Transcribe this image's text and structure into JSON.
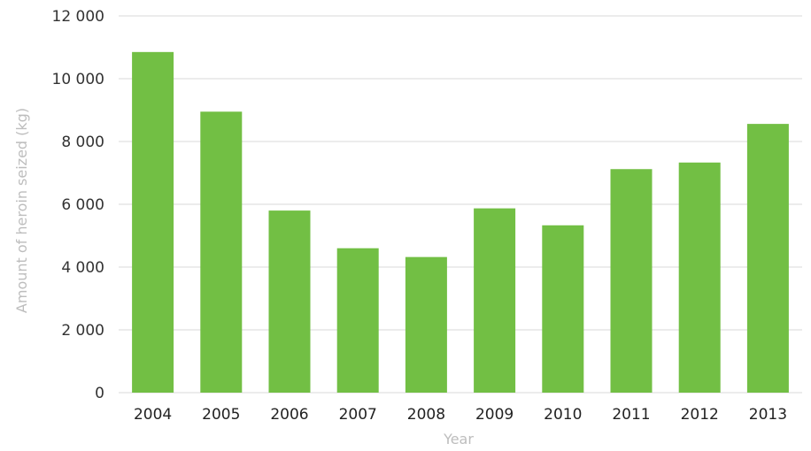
{
  "chart_data": {
    "type": "bar",
    "xlabel": "Year",
    "ylabel": "Amount of heroin seized (kg)",
    "categories": [
      "2004",
      "2005",
      "2006",
      "2007",
      "2008",
      "2009",
      "2010",
      "2011",
      "2012",
      "2013"
    ],
    "values": [
      10850,
      8950,
      5800,
      4600,
      4320,
      5870,
      5330,
      7120,
      7330,
      8560
    ],
    "ylim": [
      0,
      12000
    ],
    "yticks": [
      0,
      2000,
      4000,
      6000,
      8000,
      10000,
      12000
    ],
    "ytick_labels": [
      "0",
      "2 000",
      "4 000",
      "6 000",
      "8 000",
      "10 000",
      "12 000"
    ],
    "grid": true,
    "legend": "none",
    "colors": {
      "bar": "#72bf44",
      "grid": "#d9d9d9",
      "axis_title": "#bdbdbd"
    }
  }
}
